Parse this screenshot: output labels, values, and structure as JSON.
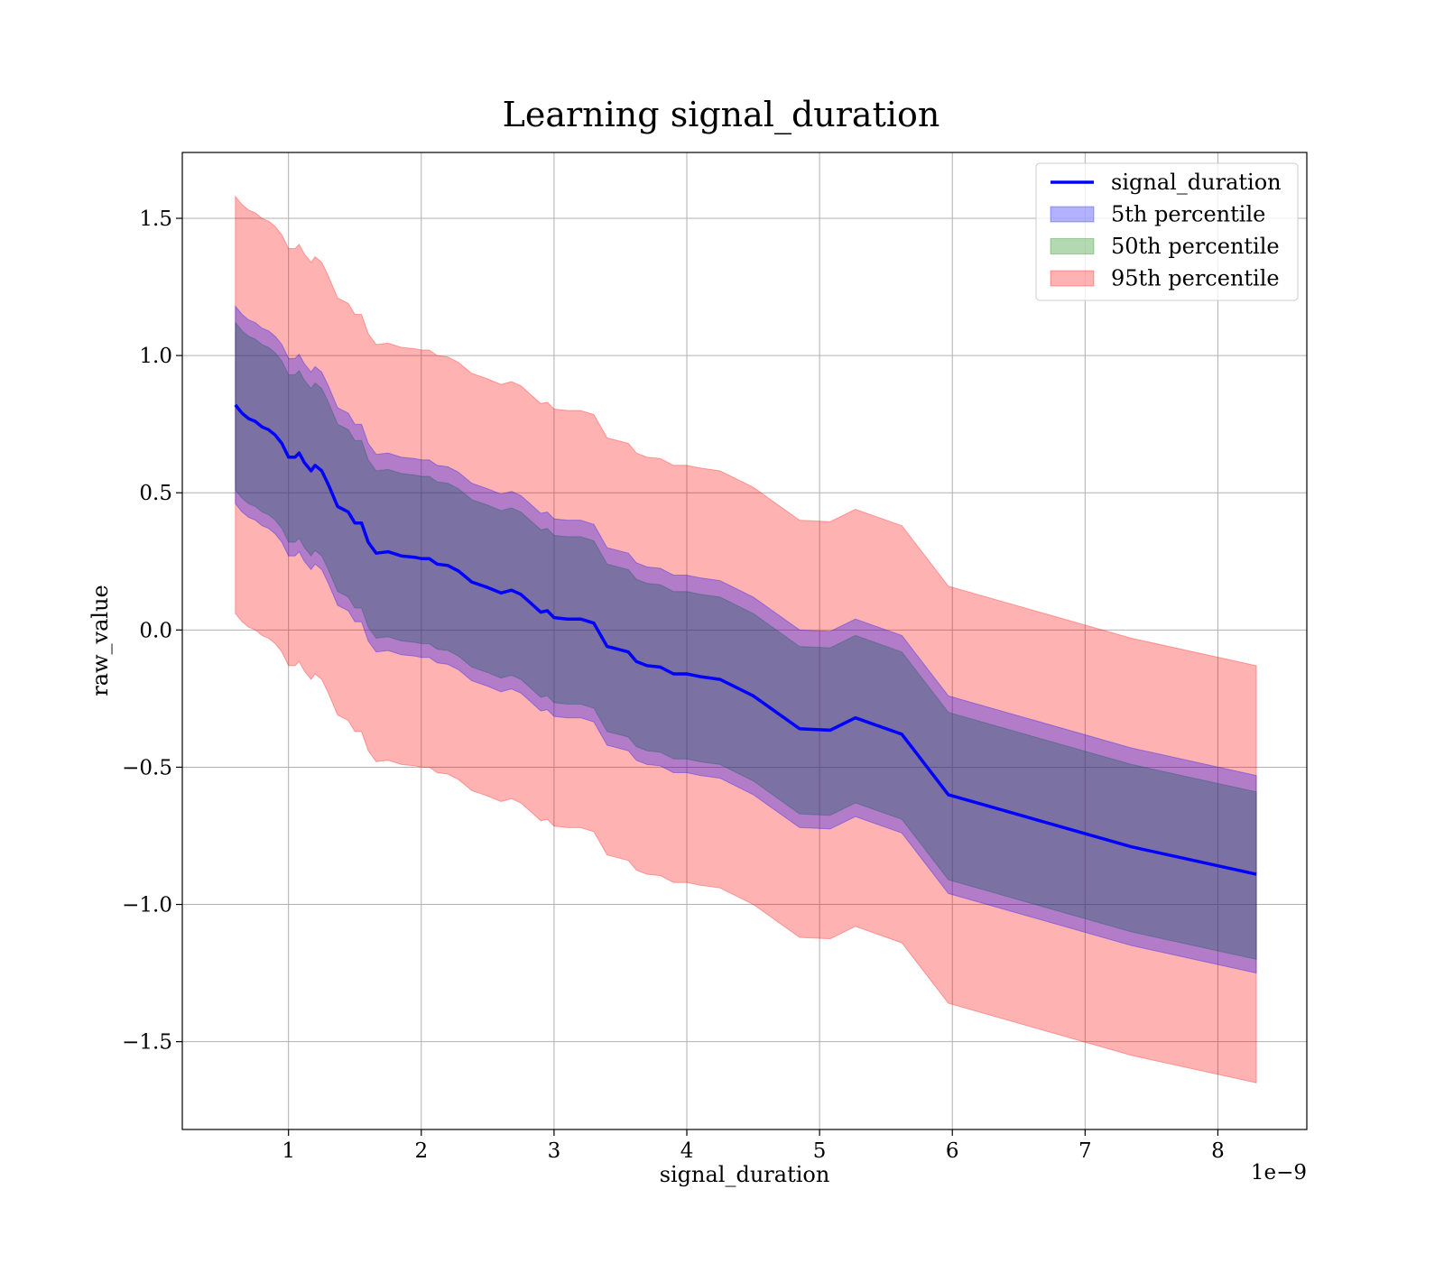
{
  "chart_data": {
    "type": "area",
    "title": "Learning signal_duration",
    "xlabel": "signal_duration",
    "ylabel": "raw_value",
    "x_offset_label": "1e−9",
    "x_scale": 1e-09,
    "xlim": [
      0.2,
      8.67
    ],
    "ylim": [
      -1.82,
      1.74
    ],
    "x_ticks": [
      1,
      2,
      3,
      4,
      5,
      6,
      7,
      8
    ],
    "x_tick_labels": [
      "1",
      "2",
      "3",
      "4",
      "5",
      "6",
      "7",
      "8"
    ],
    "y_ticks": [
      1.5,
      1.0,
      0.5,
      0.0,
      -0.5,
      -1.0,
      -1.5
    ],
    "y_tick_labels": [
      "1.5",
      "1.0",
      "0.5",
      "0.0",
      "−0.5",
      "−1.0",
      "−1.5"
    ],
    "grid": true,
    "legend_position": "top-right",
    "x": [
      0.6,
      0.65,
      0.7,
      0.75,
      0.8,
      0.85,
      0.9,
      0.95,
      1.0,
      1.05,
      1.08,
      1.12,
      1.17,
      1.2,
      1.25,
      1.3,
      1.37,
      1.45,
      1.5,
      1.55,
      1.6,
      1.66,
      1.75,
      1.85,
      1.95,
      2.0,
      2.06,
      2.12,
      2.2,
      2.28,
      2.38,
      2.5,
      2.6,
      2.68,
      2.75,
      2.82,
      2.9,
      2.95,
      3.0,
      3.1,
      3.2,
      3.3,
      3.4,
      3.48,
      3.56,
      3.62,
      3.7,
      3.8,
      3.9,
      4.0,
      4.1,
      4.25,
      4.5,
      4.85,
      5.08,
      5.27,
      5.62,
      5.97,
      7.35,
      8.29
    ],
    "series": [
      {
        "name": "signal_duration",
        "kind": "line",
        "color": "#0000ff",
        "values": [
          0.82,
          0.79,
          0.77,
          0.76,
          0.74,
          0.73,
          0.71,
          0.68,
          0.63,
          0.63,
          0.645,
          0.61,
          0.58,
          0.6,
          0.58,
          0.53,
          0.45,
          0.43,
          0.39,
          0.39,
          0.32,
          0.28,
          0.285,
          0.27,
          0.265,
          0.26,
          0.26,
          0.24,
          0.235,
          0.215,
          0.175,
          0.155,
          0.135,
          0.145,
          0.13,
          0.1,
          0.065,
          0.07,
          0.045,
          0.04,
          0.04,
          0.025,
          -0.06,
          -0.07,
          -0.08,
          -0.115,
          -0.13,
          -0.135,
          -0.16,
          -0.16,
          -0.17,
          -0.18,
          -0.24,
          -0.36,
          -0.365,
          -0.32,
          -0.38,
          -0.6,
          -0.79,
          -0.89
        ]
      },
      {
        "name": "5th percentile",
        "kind": "band",
        "color": "#0000ff",
        "lower": [
          0.46,
          0.43,
          0.41,
          0.4,
          0.38,
          0.37,
          0.35,
          0.32,
          0.27,
          0.27,
          0.285,
          0.25,
          0.22,
          0.24,
          0.22,
          0.17,
          0.09,
          0.07,
          0.03,
          0.03,
          -0.04,
          -0.08,
          -0.075,
          -0.09,
          -0.095,
          -0.1,
          -0.1,
          -0.12,
          -0.125,
          -0.145,
          -0.185,
          -0.205,
          -0.225,
          -0.215,
          -0.23,
          -0.26,
          -0.295,
          -0.29,
          -0.315,
          -0.32,
          -0.32,
          -0.335,
          -0.42,
          -0.43,
          -0.44,
          -0.475,
          -0.49,
          -0.495,
          -0.52,
          -0.52,
          -0.53,
          -0.54,
          -0.6,
          -0.72,
          -0.725,
          -0.68,
          -0.74,
          -0.96,
          -1.15,
          -1.25
        ],
        "upper": [
          1.18,
          1.15,
          1.13,
          1.12,
          1.1,
          1.09,
          1.07,
          1.04,
          0.99,
          0.99,
          1.005,
          0.97,
          0.94,
          0.96,
          0.94,
          0.89,
          0.81,
          0.79,
          0.75,
          0.75,
          0.68,
          0.64,
          0.645,
          0.63,
          0.625,
          0.62,
          0.62,
          0.6,
          0.595,
          0.575,
          0.535,
          0.515,
          0.495,
          0.505,
          0.49,
          0.46,
          0.425,
          0.43,
          0.405,
          0.4,
          0.4,
          0.385,
          0.3,
          0.29,
          0.28,
          0.245,
          0.23,
          0.225,
          0.2,
          0.2,
          0.19,
          0.18,
          0.12,
          0.0,
          -0.005,
          0.04,
          -0.02,
          -0.24,
          -0.43,
          -0.53
        ]
      },
      {
        "name": "50th percentile",
        "kind": "band",
        "color": "#008000",
        "lower": [
          0.51,
          0.48,
          0.46,
          0.45,
          0.43,
          0.42,
          0.4,
          0.37,
          0.32,
          0.32,
          0.335,
          0.3,
          0.27,
          0.29,
          0.27,
          0.22,
          0.14,
          0.12,
          0.08,
          0.08,
          0.01,
          -0.03,
          -0.025,
          -0.04,
          -0.045,
          -0.05,
          -0.05,
          -0.07,
          -0.075,
          -0.095,
          -0.135,
          -0.155,
          -0.175,
          -0.165,
          -0.18,
          -0.21,
          -0.245,
          -0.24,
          -0.265,
          -0.27,
          -0.27,
          -0.285,
          -0.37,
          -0.38,
          -0.39,
          -0.425,
          -0.44,
          -0.445,
          -0.47,
          -0.47,
          -0.48,
          -0.49,
          -0.55,
          -0.67,
          -0.675,
          -0.63,
          -0.69,
          -0.91,
          -1.1,
          -1.2
        ],
        "upper": [
          1.12,
          1.09,
          1.07,
          1.06,
          1.04,
          1.03,
          1.01,
          0.98,
          0.93,
          0.93,
          0.945,
          0.91,
          0.88,
          0.9,
          0.88,
          0.83,
          0.75,
          0.73,
          0.69,
          0.69,
          0.62,
          0.58,
          0.585,
          0.57,
          0.565,
          0.56,
          0.56,
          0.54,
          0.535,
          0.515,
          0.475,
          0.455,
          0.435,
          0.445,
          0.43,
          0.4,
          0.365,
          0.37,
          0.345,
          0.34,
          0.34,
          0.325,
          0.24,
          0.23,
          0.22,
          0.185,
          0.17,
          0.165,
          0.14,
          0.14,
          0.13,
          0.12,
          0.06,
          -0.06,
          -0.065,
          -0.02,
          -0.08,
          -0.3,
          -0.49,
          -0.59
        ]
      },
      {
        "name": "95th percentile",
        "kind": "band",
        "color": "#ff0000",
        "lower": [
          0.06,
          0.03,
          0.01,
          0.0,
          -0.02,
          -0.03,
          -0.05,
          -0.08,
          -0.13,
          -0.13,
          -0.115,
          -0.15,
          -0.18,
          -0.16,
          -0.18,
          -0.23,
          -0.31,
          -0.33,
          -0.37,
          -0.37,
          -0.44,
          -0.48,
          -0.475,
          -0.49,
          -0.495,
          -0.5,
          -0.5,
          -0.52,
          -0.525,
          -0.545,
          -0.585,
          -0.605,
          -0.625,
          -0.615,
          -0.63,
          -0.66,
          -0.695,
          -0.69,
          -0.715,
          -0.72,
          -0.72,
          -0.735,
          -0.82,
          -0.83,
          -0.84,
          -0.875,
          -0.89,
          -0.895,
          -0.92,
          -0.92,
          -0.93,
          -0.94,
          -1.0,
          -1.12,
          -1.125,
          -1.08,
          -1.14,
          -1.36,
          -1.55,
          -1.65
        ],
        "upper": [
          1.58,
          1.55,
          1.53,
          1.52,
          1.5,
          1.49,
          1.47,
          1.44,
          1.39,
          1.39,
          1.405,
          1.37,
          1.34,
          1.36,
          1.34,
          1.29,
          1.21,
          1.19,
          1.15,
          1.15,
          1.08,
          1.04,
          1.045,
          1.03,
          1.025,
          1.02,
          1.02,
          1.0,
          0.995,
          0.975,
          0.935,
          0.915,
          0.895,
          0.905,
          0.89,
          0.86,
          0.825,
          0.83,
          0.805,
          0.8,
          0.8,
          0.785,
          0.7,
          0.69,
          0.68,
          0.645,
          0.63,
          0.625,
          0.6,
          0.6,
          0.59,
          0.58,
          0.52,
          0.4,
          0.395,
          0.44,
          0.38,
          0.16,
          -0.03,
          -0.13
        ]
      }
    ]
  }
}
